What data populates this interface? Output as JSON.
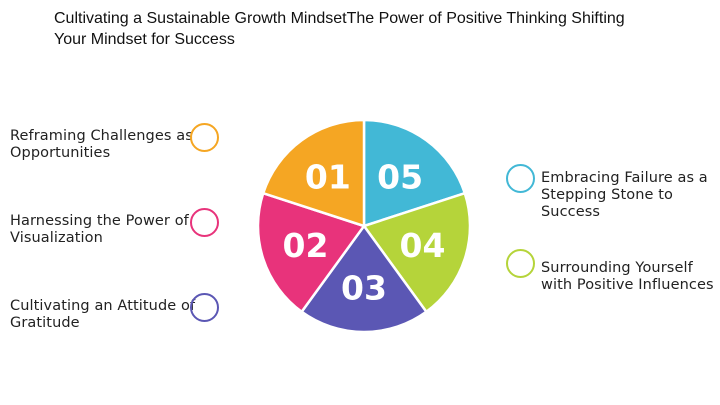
{
  "title": {
    "line1": "Cultivating a Sustainable Growth MindsetThe Power of Positive Thinking Shifting",
    "line2": "Your Mindset for Success"
  },
  "items": [
    {
      "number": "01",
      "line1": "Reframing Challenges as",
      "line2": "Opportunities",
      "line3": "",
      "color": "#f5a623"
    },
    {
      "number": "02",
      "line1": "Harnessing the Power of",
      "line2": "Visualization",
      "line3": "",
      "color": "#e8337b"
    },
    {
      "number": "03",
      "line1": "Cultivating an Attitude of",
      "line2": "Gratitude",
      "line3": "",
      "color": "#5b57b4"
    },
    {
      "number": "04",
      "line1": "Surrounding Yourself",
      "line2": "with Positive Influences",
      "line3": "",
      "color": "#b5d43a"
    },
    {
      "number": "05",
      "line1": "Embracing Failure as a",
      "line2": "Stepping Stone to",
      "line3": "Success",
      "color": "#42b8d6"
    }
  ]
}
